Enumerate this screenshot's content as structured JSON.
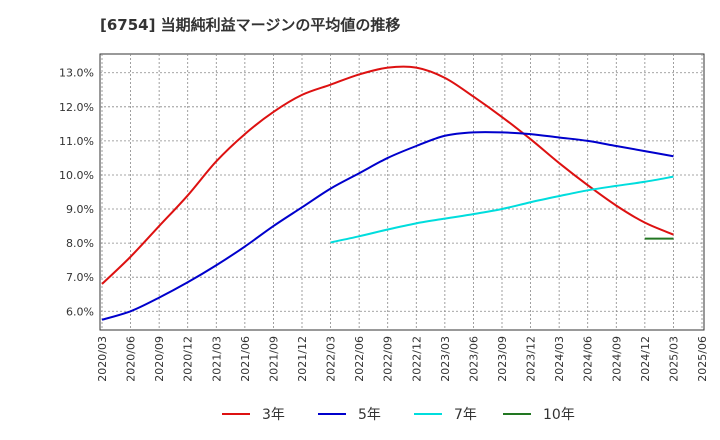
{
  "chart_data": {
    "type": "line",
    "title": "[6754]  当期純利益マージンの平均値の推移",
    "x_ticks": [
      "2020/03",
      "2020/06",
      "2020/09",
      "2020/12",
      "2021/03",
      "2021/06",
      "2021/09",
      "2021/12",
      "2022/03",
      "2022/06",
      "2022/09",
      "2022/12",
      "2023/03",
      "2023/06",
      "2023/09",
      "2023/12",
      "2024/03",
      "2024/06",
      "2024/09",
      "2024/12",
      "2025/03",
      "2025/06"
    ],
    "y_ticks": [
      "6.0%",
      "7.0%",
      "8.0%",
      "9.0%",
      "10.0%",
      "11.0%",
      "12.0%",
      "13.0%"
    ],
    "ylim": [
      5.45,
      13.55
    ],
    "grid": true,
    "legend_position": "bottom",
    "series": [
      {
        "name": "3年",
        "color": "#dd1111",
        "x": [
          "2020/03",
          "2020/06",
          "2020/09",
          "2020/12",
          "2021/03",
          "2021/06",
          "2021/09",
          "2021/12",
          "2022/03",
          "2022/06",
          "2022/09",
          "2022/12",
          "2023/03",
          "2023/06",
          "2023/09",
          "2023/12",
          "2024/03",
          "2024/06",
          "2024/09",
          "2024/12",
          "2025/03"
        ],
        "values": [
          6.8,
          7.6,
          8.5,
          9.4,
          10.4,
          11.2,
          11.85,
          12.35,
          12.65,
          12.95,
          13.15,
          13.15,
          12.85,
          12.3,
          11.7,
          11.05,
          10.35,
          9.7,
          9.1,
          8.6,
          8.25
        ]
      },
      {
        "name": "5年",
        "color": "#0000cc",
        "x": [
          "2020/03",
          "2020/06",
          "2020/09",
          "2020/12",
          "2021/03",
          "2021/06",
          "2021/09",
          "2021/12",
          "2022/03",
          "2022/06",
          "2022/09",
          "2022/12",
          "2023/03",
          "2023/06",
          "2023/09",
          "2023/12",
          "2024/03",
          "2024/06",
          "2024/09",
          "2024/12",
          "2025/03"
        ],
        "values": [
          5.75,
          6.0,
          6.4,
          6.85,
          7.35,
          7.9,
          8.5,
          9.05,
          9.6,
          10.05,
          10.5,
          10.85,
          11.15,
          11.25,
          11.25,
          11.2,
          11.1,
          11.0,
          10.85,
          10.7,
          10.55
        ]
      },
      {
        "name": "7年",
        "color": "#00dddd",
        "x": [
          "2022/03",
          "2022/06",
          "2022/09",
          "2022/12",
          "2023/03",
          "2023/06",
          "2023/09",
          "2023/12",
          "2024/03",
          "2024/06",
          "2024/09",
          "2024/12",
          "2025/03"
        ],
        "values": [
          8.02,
          8.2,
          8.4,
          8.58,
          8.72,
          8.85,
          9.0,
          9.2,
          9.38,
          9.55,
          9.68,
          9.8,
          9.95
        ]
      },
      {
        "name": "10年",
        "color": "#227722",
        "x": [
          "2024/12",
          "2025/03"
        ],
        "values": [
          8.13,
          8.13
        ]
      }
    ]
  }
}
